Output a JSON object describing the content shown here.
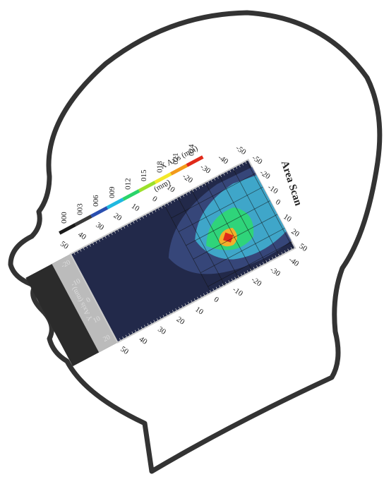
{
  "figure": {
    "title": "Area Scan",
    "colorbar": {
      "labels": [
        "000",
        "003",
        "006",
        "009",
        "012",
        "015",
        "018",
        "021",
        "024"
      ],
      "colors": [
        "#1a1a1a",
        "#3a3a3a",
        "#2a4fb0",
        "#1fb8e0",
        "#2ad46a",
        "#9be02a",
        "#f2e82a",
        "#f29a1a",
        "#e02a1a"
      ],
      "unit": "(mm)"
    },
    "x_axis": {
      "label": "X Axis (mm)",
      "ticks": [
        "50",
        "40",
        "30",
        "20",
        "10",
        "0",
        "-10",
        "-20",
        "-30",
        "-40",
        "-50"
      ],
      "bottom_ticks": [
        "50",
        "40",
        "30",
        "20",
        "10",
        "0",
        "-10",
        "-20",
        "-30",
        "-40"
      ]
    },
    "side_ticks": [
      "-50",
      "-20",
      "-10",
      "0",
      "10",
      "20",
      "50"
    ],
    "y_axis": {
      "label": "Y Axis (mm)",
      "ticks": [
        "-20",
        "-10",
        "0",
        "10",
        "20"
      ]
    }
  }
}
